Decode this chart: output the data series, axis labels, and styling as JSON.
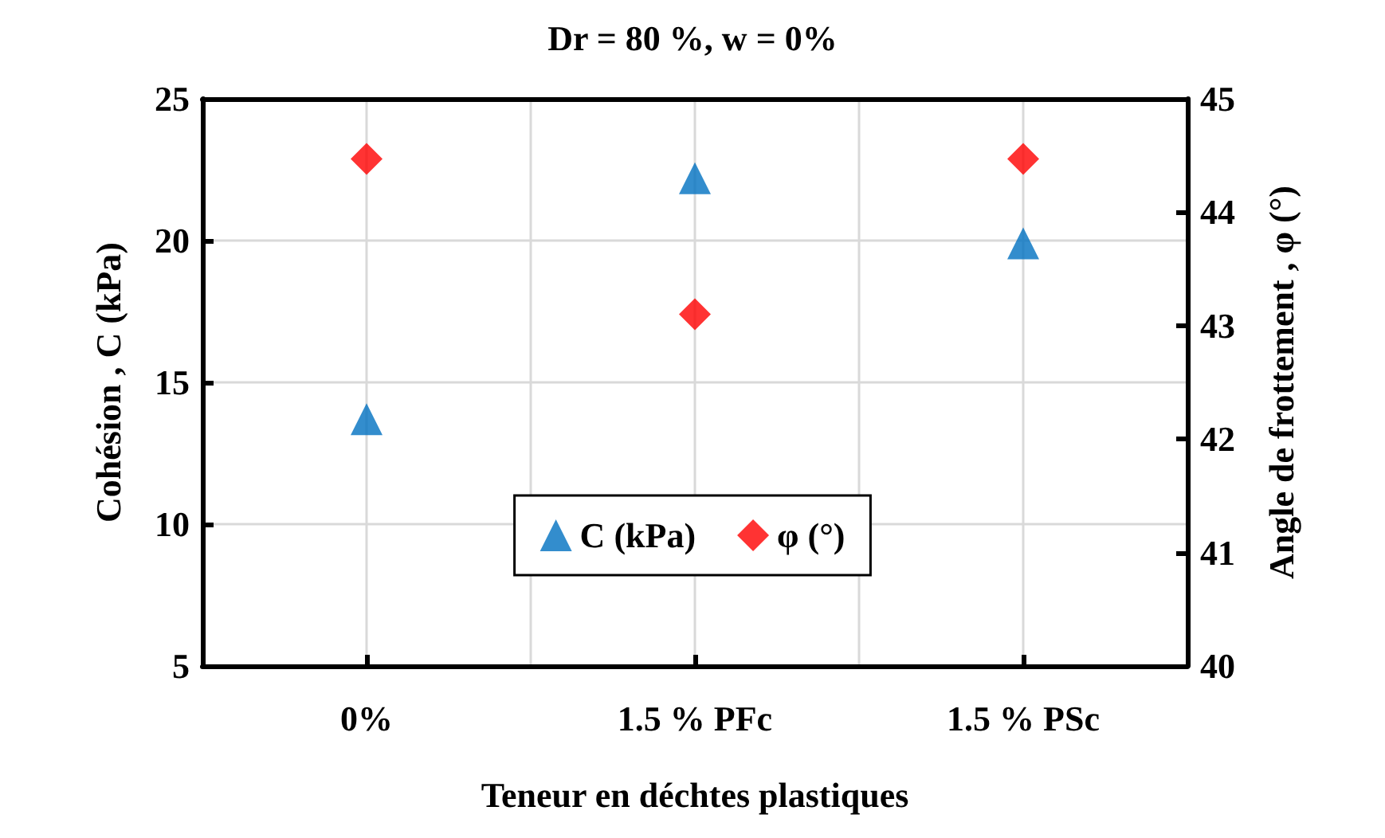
{
  "chart_data": {
    "type": "scatter",
    "title": "Dr = 80 %, w = 0%",
    "xlabel": "Teneur en déchtes plastiques",
    "ylabel": "Cohésion , C (kPa)",
    "y2label": "Angle de frottement , φ (°)",
    "categories": [
      "0%",
      "1.5 % PFc",
      "1.5 % PSc"
    ],
    "series": [
      {
        "name": "C (kPa)",
        "color": "#0070c0",
        "marker": "triangle",
        "values": [
          13.7,
          22.2,
          19.9
        ]
      },
      {
        "name": "φ (°)",
        "color": "#ff0000",
        "marker": "diamond",
        "axis": "y2",
        "values": [
          44.47,
          43.1,
          44.47
        ]
      }
    ],
    "ylim": [
      5,
      25
    ],
    "yticks": [
      5,
      10,
      15,
      20,
      25
    ],
    "y2lim": [
      40,
      45
    ],
    "y2ticks": [
      40,
      41,
      42,
      43,
      44,
      45
    ],
    "grid": true,
    "legend": "bottom"
  }
}
